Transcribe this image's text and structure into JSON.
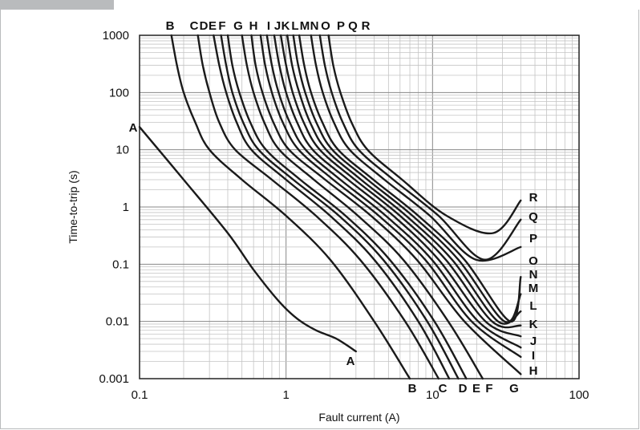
{
  "chart_data": {
    "type": "line",
    "title": "",
    "xlabel": "Fault current (A)",
    "ylabel": "Time-to-trip (s)",
    "xscale": "log",
    "yscale": "log",
    "xlim": [
      0.1,
      100
    ],
    "ylim": [
      0.001,
      1000
    ],
    "grid": true,
    "x_ticks": [
      {
        "value": 0.1,
        "label": "0.1"
      },
      {
        "value": 1,
        "label": "1"
      },
      {
        "value": 10,
        "label": "10"
      },
      {
        "value": 100,
        "label": "100"
      }
    ],
    "y_ticks": [
      {
        "value": 1000,
        "label": "1000"
      },
      {
        "value": 100,
        "label": "100"
      },
      {
        "value": 10,
        "label": "10"
      },
      {
        "value": 1,
        "label": "1"
      },
      {
        "value": 0.1,
        "label": "0.1"
      },
      {
        "value": 0.01,
        "label": "0.01"
      },
      {
        "value": 0.001,
        "label": "0.001"
      }
    ],
    "line_color": "#1a1a1a",
    "series": [
      {
        "name": "A",
        "x": [
          0.1,
          0.2,
          0.4,
          0.6,
          0.9,
          1.2,
          1.6,
          2.2,
          3.0
        ],
        "y": [
          25,
          3,
          0.35,
          0.08,
          0.022,
          0.011,
          0.007,
          0.005,
          0.003
        ]
      },
      {
        "name": "B",
        "x": [
          0.165,
          0.18,
          0.2,
          0.24,
          0.3,
          0.5,
          1.0,
          2.0,
          4.0,
          7.0
        ],
        "y": [
          1000,
          300,
          100,
          30,
          10,
          3,
          0.7,
          0.12,
          0.01,
          0.001
        ]
      },
      {
        "name": "C",
        "x": [
          0.25,
          0.27,
          0.3,
          0.35,
          0.45,
          0.8,
          1.6,
          3.2,
          6.5,
          11.0
        ],
        "y": [
          1000,
          300,
          100,
          30,
          10,
          3,
          0.7,
          0.12,
          0.01,
          0.001
        ]
      },
      {
        "name": "D",
        "x": [
          0.32,
          0.35,
          0.39,
          0.46,
          0.58,
          1.0,
          2.0,
          4.0,
          8.0,
          13.0
        ],
        "y": [
          1000,
          300,
          100,
          30,
          10,
          3,
          0.7,
          0.12,
          0.01,
          0.001
        ]
      },
      {
        "name": "E",
        "x": [
          0.36,
          0.39,
          0.43,
          0.51,
          0.65,
          1.12,
          2.3,
          4.6,
          9.2,
          15.0
        ],
        "y": [
          1000,
          300,
          100,
          30,
          10,
          3,
          0.7,
          0.12,
          0.01,
          0.001
        ]
      },
      {
        "name": "F",
        "x": [
          0.4,
          0.43,
          0.48,
          0.57,
          0.73,
          1.25,
          2.55,
          5.1,
          10.3,
          17.0
        ],
        "y": [
          1000,
          300,
          100,
          30,
          10,
          3,
          0.7,
          0.12,
          0.01,
          0.001
        ]
      },
      {
        "name": "G",
        "x": [
          0.5,
          0.54,
          0.6,
          0.71,
          0.9,
          1.55,
          3.1,
          6.3,
          12.8,
          22.0
        ],
        "y": [
          1000,
          300,
          100,
          30,
          10,
          3,
          0.7,
          0.12,
          0.01,
          0.001
        ]
      },
      {
        "name": "H",
        "x": [
          0.58,
          0.62,
          0.69,
          0.82,
          1.05,
          1.85,
          3.8,
          7.8,
          16.5,
          40.0
        ],
        "y": [
          1000,
          300,
          100,
          30,
          10,
          3,
          0.7,
          0.12,
          0.01,
          0.0012
        ]
      },
      {
        "name": "I",
        "x": [
          0.67,
          0.72,
          0.8,
          0.95,
          1.22,
          2.1,
          4.3,
          8.9,
          18.5,
          40.0
        ],
        "y": [
          1000,
          300,
          100,
          30,
          10,
          3,
          0.7,
          0.12,
          0.01,
          0.0024
        ]
      },
      {
        "name": "J",
        "x": [
          0.74,
          0.8,
          0.89,
          1.06,
          1.36,
          2.35,
          4.8,
          9.9,
          20.5,
          40.0
        ],
        "y": [
          1000,
          300,
          100,
          30,
          10,
          3,
          0.7,
          0.12,
          0.01,
          0.0035
        ]
      },
      {
        "name": "K",
        "x": [
          0.83,
          0.9,
          1.0,
          1.19,
          1.52,
          2.65,
          5.4,
          11.0,
          23.0,
          40.0
        ],
        "y": [
          1000,
          300,
          100,
          30,
          10,
          3,
          0.7,
          0.12,
          0.01,
          0.0055
        ]
      },
      {
        "name": "L",
        "x": [
          0.92,
          1.0,
          1.11,
          1.32,
          1.7,
          2.95,
          6.0,
          12.3,
          25.5,
          40.0
        ],
        "y": [
          1000,
          300,
          100,
          30,
          10,
          3,
          0.7,
          0.12,
          0.01,
          0.0085
        ]
      },
      {
        "name": "M",
        "x": [
          1.02,
          1.1,
          1.23,
          1.46,
          1.88,
          3.25,
          6.6,
          13.6,
          28.0,
          40.0
        ],
        "y": [
          1000,
          300,
          100,
          30,
          10,
          3,
          0.7,
          0.12,
          0.01,
          0.015
        ]
      },
      {
        "name": "N",
        "x": [
          1.12,
          1.21,
          1.35,
          1.61,
          2.07,
          3.6,
          7.3,
          15.0,
          31.0,
          40.0
        ],
        "y": [
          1000,
          300,
          100,
          30,
          10,
          3,
          0.7,
          0.12,
          0.01,
          0.03
        ]
      },
      {
        "name": "O",
        "x": [
          1.23,
          1.33,
          1.48,
          1.77,
          2.27,
          3.95,
          8.0,
          16.5,
          34.0,
          40.0
        ],
        "y": [
          1000,
          300,
          100,
          30,
          10,
          3,
          0.7,
          0.12,
          0.01,
          0.06
        ]
      },
      {
        "name": "P",
        "x": [
          1.48,
          1.6,
          1.78,
          2.12,
          2.72,
          4.7,
          9.6,
          19.8,
          40.0
        ],
        "y": [
          1000,
          300,
          100,
          30,
          10,
          3,
          0.7,
          0.12,
          0.2
        ]
      },
      {
        "name": "Q",
        "x": [
          1.7,
          1.84,
          2.05,
          2.44,
          3.13,
          5.4,
          11.0,
          22.8,
          40.0
        ],
        "y": [
          1000,
          300,
          100,
          30,
          10,
          3,
          0.7,
          0.12,
          0.6
        ]
      },
      {
        "name": "R",
        "x": [
          1.95,
          2.1,
          2.35,
          2.8,
          3.6,
          6.2,
          12.5,
          26.0,
          40.0
        ],
        "y": [
          1000,
          300,
          100,
          30,
          10,
          3,
          0.7,
          0.35,
          1.3
        ]
      }
    ],
    "curve_labels_top": [
      "B",
      "C",
      "D",
      "E",
      "F",
      "G",
      "H",
      "I",
      "J",
      "K",
      "L",
      "M",
      "N",
      "O",
      "P",
      "Q",
      "R"
    ],
    "curve_labels_right": [
      "R",
      "Q",
      "P",
      "O",
      "N",
      "M",
      "L",
      "K",
      "J",
      "I",
      "H"
    ],
    "curve_labels_bottom": [
      "A",
      "B",
      "C",
      "D",
      "E",
      "F",
      "G"
    ],
    "curve_label_left": "A"
  }
}
